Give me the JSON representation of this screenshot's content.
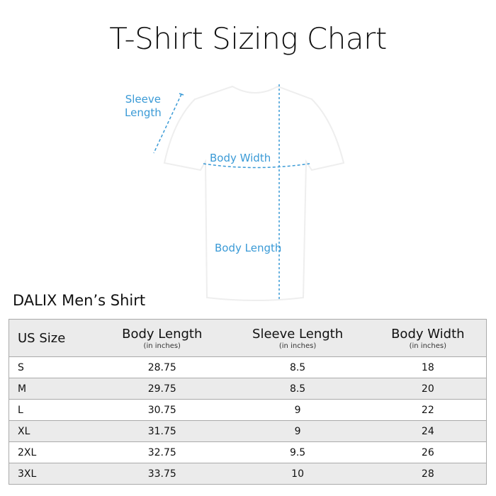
{
  "title": "T-Shirt Sizing Chart",
  "diagram": {
    "sleeve_label_1": "Sleeve",
    "sleeve_label_2": "Length",
    "width_label": "Body Width",
    "length_label": "Body Length",
    "accent": "#3a9ad6"
  },
  "table": {
    "title": "DALIX Men’s Shirt",
    "headers": [
      {
        "label": "US Size",
        "unit": ""
      },
      {
        "label": "Body Length",
        "unit": "(in inches)"
      },
      {
        "label": "Sleeve Length",
        "unit": "(in inches)"
      },
      {
        "label": "Body Width",
        "unit": "(in inches)"
      }
    ],
    "rows": [
      [
        "S",
        "28.75",
        "8.5",
        "18"
      ],
      [
        "M",
        "29.75",
        "8.5",
        "20"
      ],
      [
        "L",
        "30.75",
        "9",
        "22"
      ],
      [
        "XL",
        "31.75",
        "9",
        "24"
      ],
      [
        "2XL",
        "32.75",
        "9.5",
        "26"
      ],
      [
        "3XL",
        "33.75",
        "10",
        "28"
      ]
    ]
  }
}
